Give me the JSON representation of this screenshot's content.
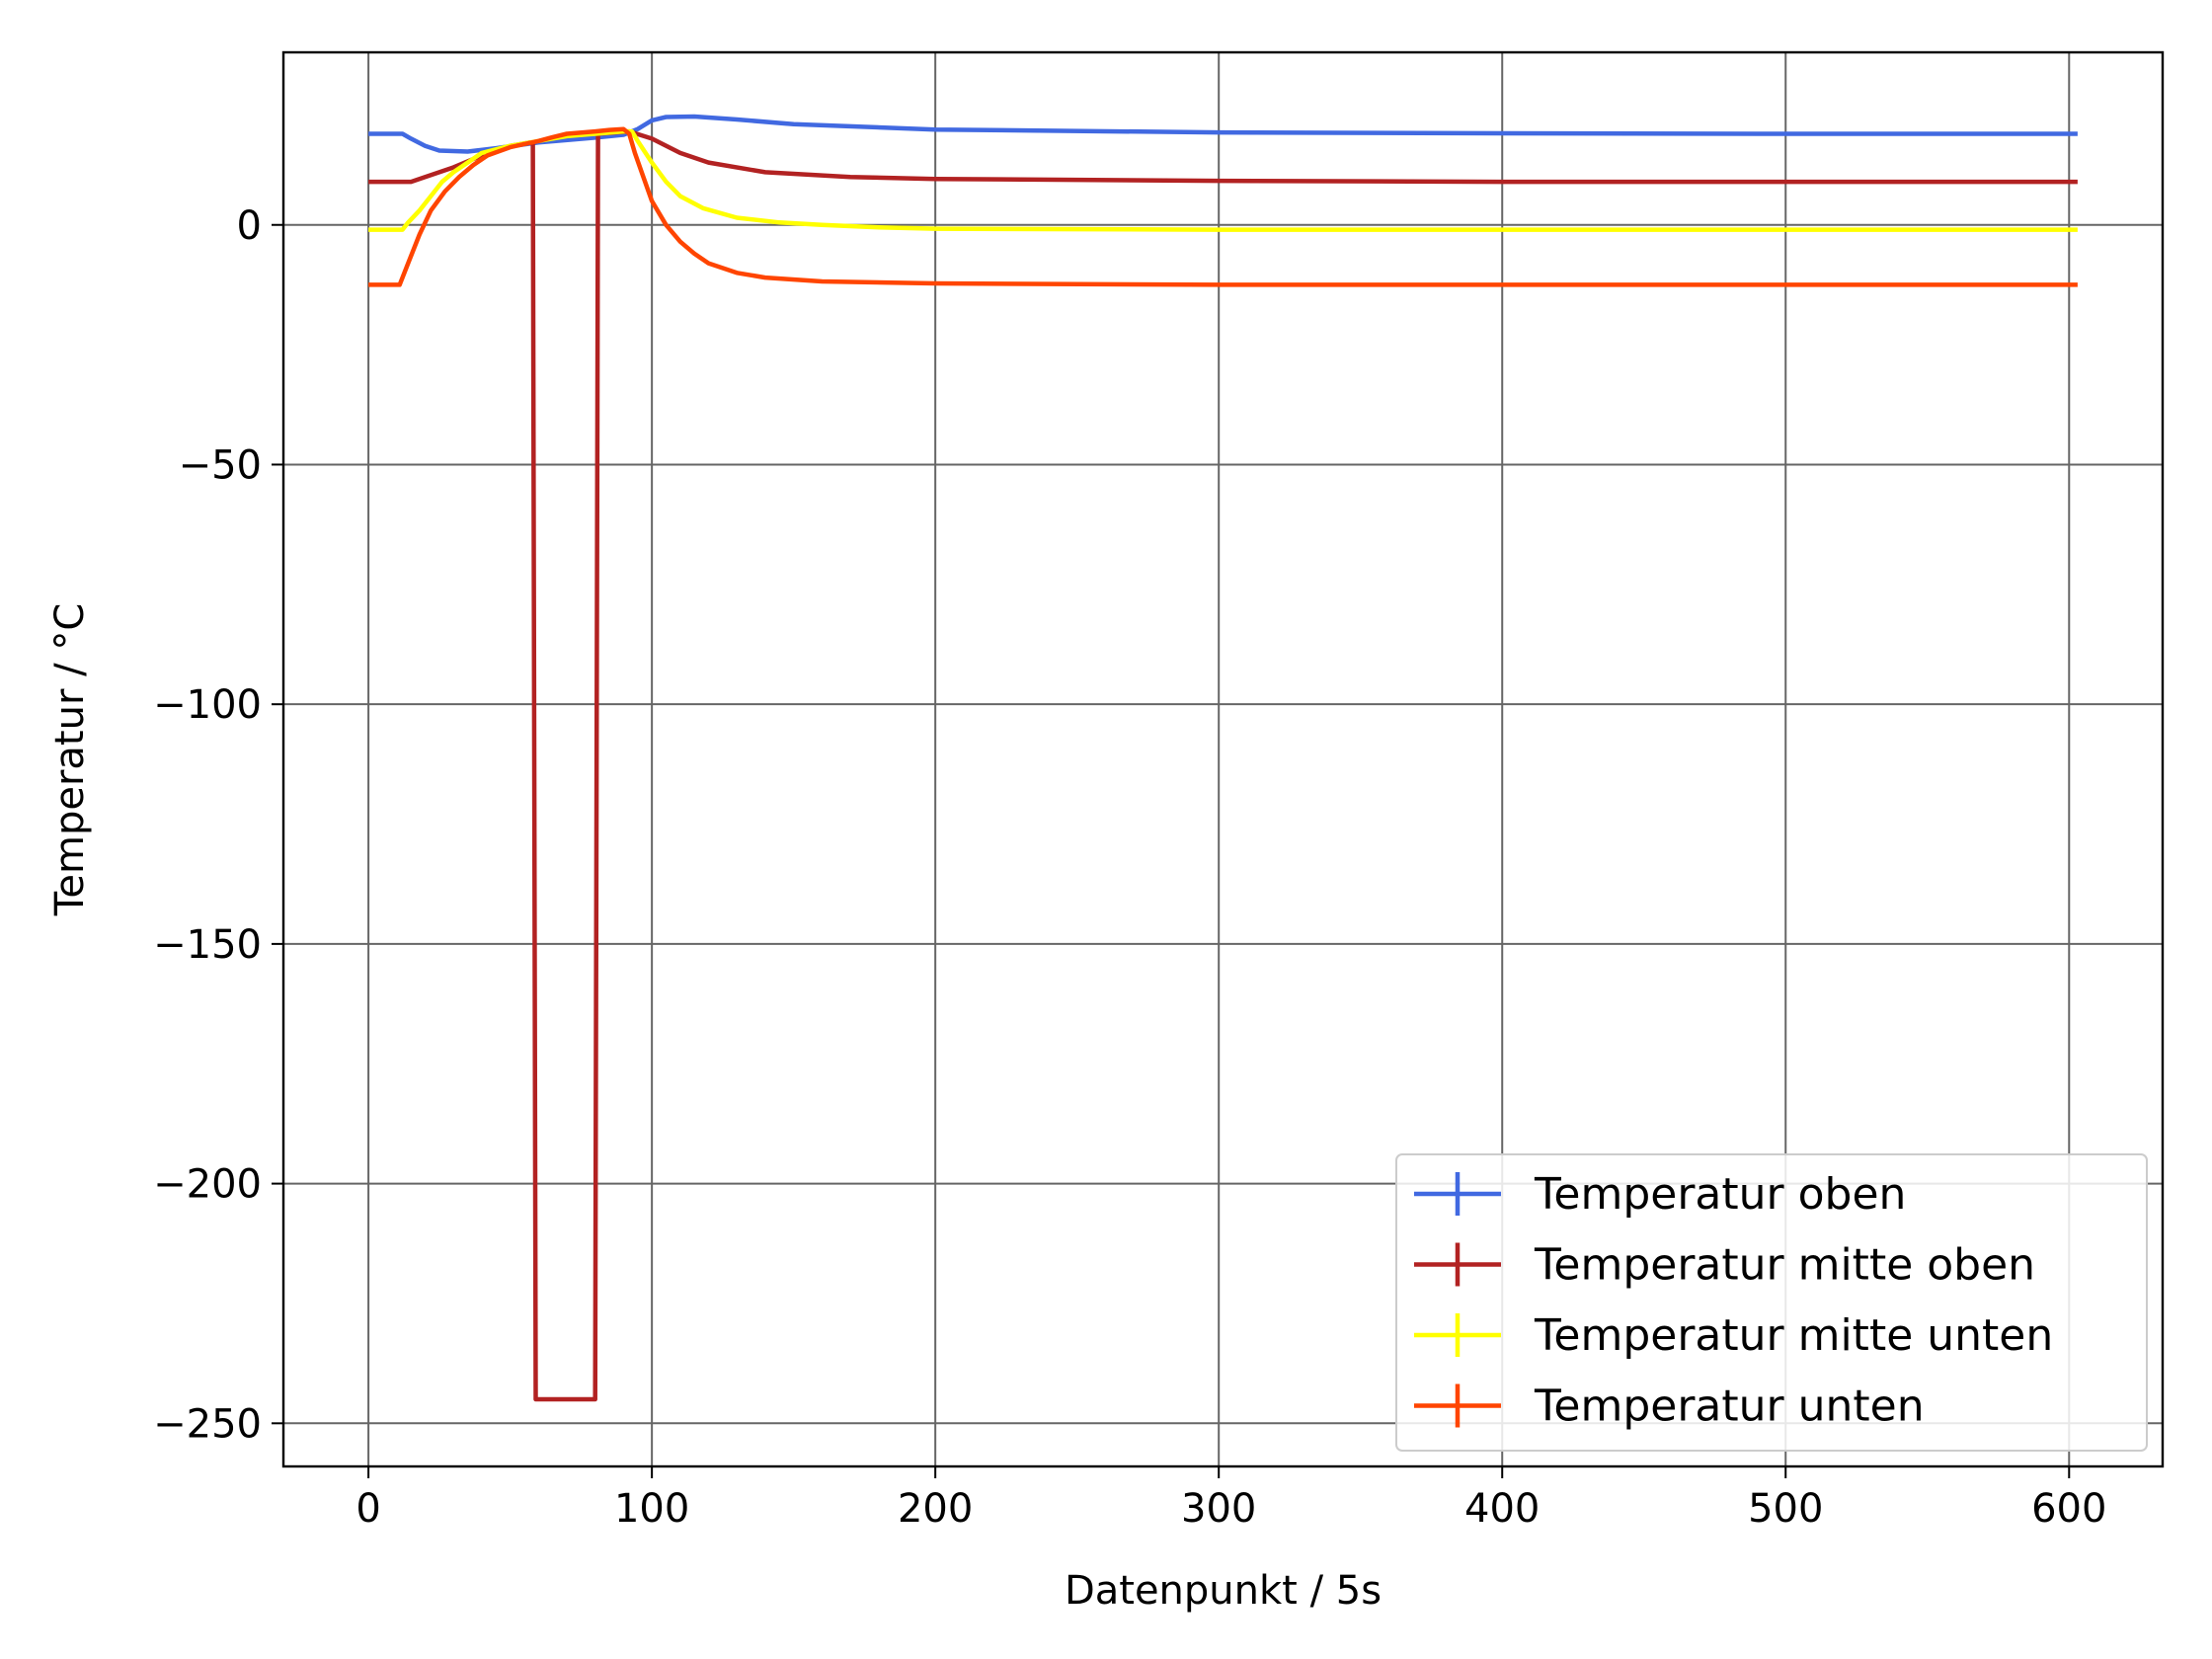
{
  "chart_data": {
    "type": "line",
    "xlabel": "Datenpunkt / 5s",
    "ylabel": "Temperatur / °C",
    "xlim": [
      -30,
      633
    ],
    "ylim": [
      -259,
      36
    ],
    "xticks": [
      0,
      100,
      200,
      300,
      400,
      500,
      600
    ],
    "yticks": [
      0,
      -50,
      -100,
      -150,
      -200,
      -250
    ],
    "xtick_labels": [
      "0",
      "100",
      "200",
      "300",
      "400",
      "500",
      "600"
    ],
    "ytick_labels": [
      "0",
      "−50",
      "−100",
      "−150",
      "−200",
      "−250"
    ],
    "grid": true,
    "legend_position": "lower-right",
    "series": [
      {
        "name": "Temperatur oben",
        "color": "#4169e1",
        "points": [
          [
            0,
            19
          ],
          [
            12,
            19
          ],
          [
            15,
            18
          ],
          [
            20,
            16.5
          ],
          [
            25,
            15.5
          ],
          [
            35,
            15.3
          ],
          [
            45,
            16
          ],
          [
            60,
            17.2
          ],
          [
            80,
            18.2
          ],
          [
            90,
            18.8
          ],
          [
            95,
            20
          ],
          [
            100,
            21.8
          ],
          [
            105,
            22.5
          ],
          [
            115,
            22.6
          ],
          [
            130,
            22
          ],
          [
            150,
            21
          ],
          [
            200,
            19.9
          ],
          [
            300,
            19.3
          ],
          [
            400,
            19.1
          ],
          [
            500,
            19
          ],
          [
            603,
            19
          ]
        ]
      },
      {
        "name": "Temperatur mitte oben",
        "color": "#b22222",
        "points": [
          [
            0,
            9
          ],
          [
            15,
            9
          ],
          [
            20,
            10
          ],
          [
            30,
            12
          ],
          [
            40,
            14.5
          ],
          [
            50,
            16.5
          ],
          [
            57,
            17.2
          ],
          [
            58,
            17.2
          ],
          [
            59,
            -245
          ],
          [
            80,
            -245
          ],
          [
            81,
            19
          ],
          [
            92,
            19.5
          ],
          [
            100,
            18
          ],
          [
            110,
            15
          ],
          [
            120,
            13
          ],
          [
            140,
            11
          ],
          [
            170,
            10
          ],
          [
            200,
            9.6
          ],
          [
            300,
            9.2
          ],
          [
            400,
            9
          ],
          [
            500,
            9
          ],
          [
            603,
            9
          ]
        ]
      },
      {
        "name": "Temperatur mitte unten",
        "color": "#ffff00",
        "points": [
          [
            0,
            -1
          ],
          [
            12,
            -1
          ],
          [
            14,
            0.5
          ],
          [
            18,
            3
          ],
          [
            22,
            6
          ],
          [
            26,
            9
          ],
          [
            30,
            11
          ],
          [
            35,
            13
          ],
          [
            40,
            15
          ],
          [
            50,
            16.5
          ],
          [
            60,
            17.5
          ],
          [
            70,
            18.5
          ],
          [
            80,
            19
          ],
          [
            90,
            19.5
          ],
          [
            93,
            19.5
          ],
          [
            95,
            17.5
          ],
          [
            100,
            13
          ],
          [
            105,
            9
          ],
          [
            110,
            6
          ],
          [
            118,
            3.5
          ],
          [
            130,
            1.5
          ],
          [
            145,
            0.5
          ],
          [
            160,
            0
          ],
          [
            180,
            -0.5
          ],
          [
            200,
            -0.8
          ],
          [
            300,
            -1
          ],
          [
            400,
            -1
          ],
          [
            500,
            -1
          ],
          [
            603,
            -1
          ]
        ]
      },
      {
        "name": "Temperatur unten",
        "color": "#ff4500",
        "points": [
          [
            0,
            -12.5
          ],
          [
            11,
            -12.5
          ],
          [
            14,
            -8
          ],
          [
            18,
            -2
          ],
          [
            22,
            3
          ],
          [
            27,
            7
          ],
          [
            32,
            10
          ],
          [
            37,
            12.5
          ],
          [
            42,
            14.5
          ],
          [
            50,
            16.2
          ],
          [
            60,
            17.5
          ],
          [
            65,
            18.3
          ],
          [
            70,
            19
          ],
          [
            80,
            19.5
          ],
          [
            85,
            19.8
          ],
          [
            90,
            20
          ],
          [
            92,
            19
          ],
          [
            94,
            15
          ],
          [
            97,
            10
          ],
          [
            100,
            5
          ],
          [
            105,
            0
          ],
          [
            110,
            -3.5
          ],
          [
            115,
            -6
          ],
          [
            120,
            -8
          ],
          [
            130,
            -10
          ],
          [
            140,
            -11
          ],
          [
            160,
            -11.8
          ],
          [
            200,
            -12.2
          ],
          [
            300,
            -12.5
          ],
          [
            400,
            -12.5
          ],
          [
            500,
            -12.5
          ],
          [
            603,
            -12.5
          ]
        ]
      }
    ]
  }
}
